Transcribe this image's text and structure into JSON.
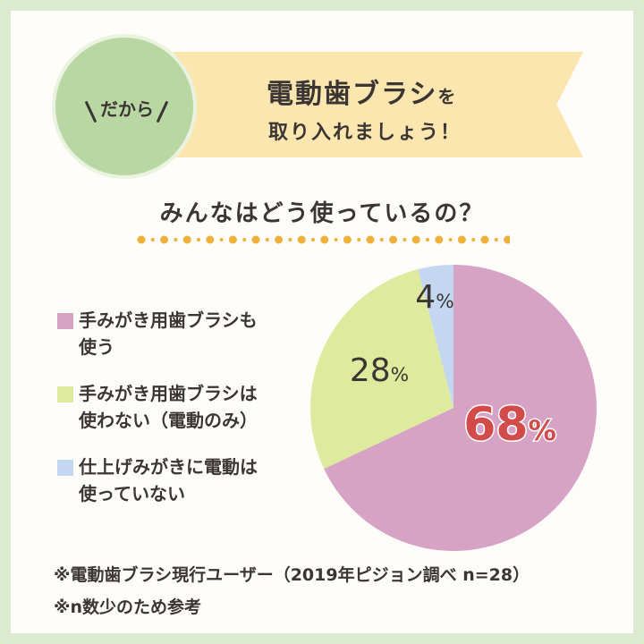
{
  "header": {
    "badge": "だから",
    "title_main": "電動歯ブラシ",
    "title_particle": "を",
    "title_line2": "取り入れましょう！"
  },
  "question": "みんなはどう使っているの？",
  "colors": {
    "border": "#dcebcf",
    "badge_circle": "#b9d7a3",
    "banner": "#fbe6b0",
    "dots": "#f0b13c",
    "pink": "#d6a3c4",
    "green": "#deea9d",
    "blue": "#c3d8f0",
    "highlight": "#d24b4b"
  },
  "legend": [
    {
      "line1": "手みがき用歯ブラシも",
      "line2": "使う",
      "color": "#d6a3c4"
    },
    {
      "line1": "手みがき用歯ブラシは",
      "line2": "使わない（電動のみ）",
      "color": "#deea9d"
    },
    {
      "line1": "仕上げみがきに電動は",
      "line2": "使っていない",
      "color": "#c3d8f0"
    }
  ],
  "chart_data": {
    "type": "pie",
    "slices": [
      {
        "label": "手みがき用歯ブラシも使う",
        "value": 68,
        "display": "68",
        "color": "#d6a3c4"
      },
      {
        "label": "手みがき用歯ブラシは使わない（電動のみ）",
        "value": 28,
        "display": "28",
        "color": "#deea9d"
      },
      {
        "label": "仕上げみがきに電動は使っていない",
        "value": 4,
        "display": "4",
        "color": "#c3d8f0"
      }
    ],
    "unit": "%"
  },
  "footnotes": [
    "※電動歯ブラシ現行ユーザー（2019年ピジョン調べ n=28）",
    "※n数少のため参考"
  ]
}
